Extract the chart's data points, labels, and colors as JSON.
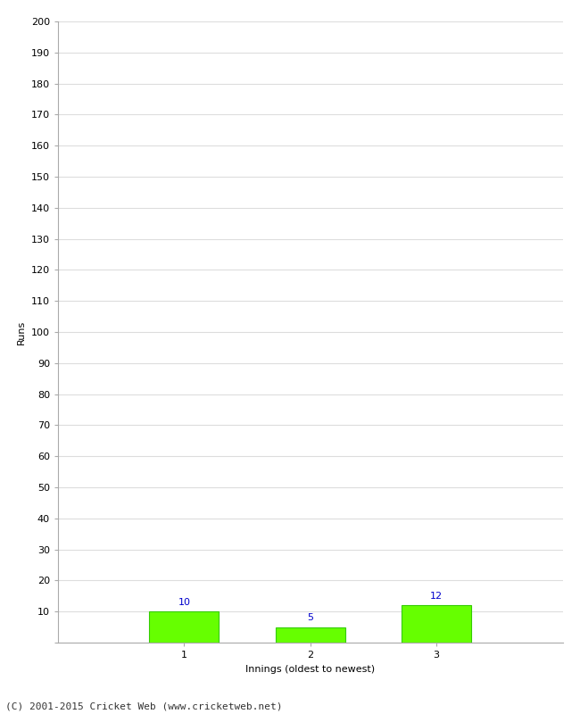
{
  "categories": [
    "1",
    "2",
    "3"
  ],
  "values": [
    10,
    5,
    12
  ],
  "bar_color": "#66ff00",
  "bar_edge_color": "#33cc00",
  "value_label_color": "#0000cc",
  "value_label_fontsize": 8,
  "xlabel": "Innings (oldest to newest)",
  "ylabel": "Runs",
  "ylim": [
    0,
    200
  ],
  "yticks": [
    0,
    10,
    20,
    30,
    40,
    50,
    60,
    70,
    80,
    90,
    100,
    110,
    120,
    130,
    140,
    150,
    160,
    170,
    180,
    190,
    200
  ],
  "grid_color": "#dddddd",
  "background_color": "#ffffff",
  "footer_text": "(C) 2001-2015 Cricket Web (www.cricketweb.net)",
  "footer_fontsize": 8,
  "bar_width": 0.55,
  "tick_label_fontsize": 8,
  "axis_label_fontsize": 8,
  "x_positions": [
    1,
    2,
    3
  ],
  "xlim": [
    0,
    4
  ]
}
